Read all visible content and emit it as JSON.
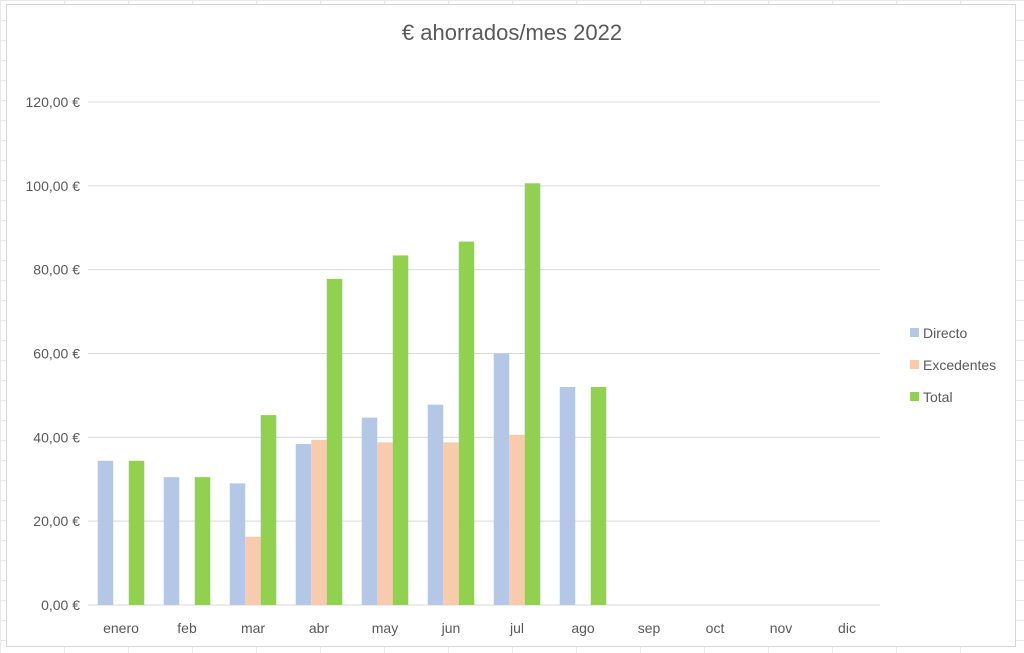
{
  "chart_data": {
    "type": "bar",
    "title": "€ ahorrados/mes 2022",
    "categories": [
      "enero",
      "feb",
      "mar",
      "abr",
      "may",
      "jun",
      "jul",
      "ago",
      "sep",
      "oct",
      "nov",
      "dic"
    ],
    "series": [
      {
        "name": "Directo",
        "color": "#b4c7e7",
        "values": [
          34.4,
          30.5,
          29.0,
          38.4,
          44.7,
          47.8,
          60.0,
          52.0,
          null,
          null,
          null,
          null
        ]
      },
      {
        "name": "Excedentes",
        "color": "#f8cbad",
        "values": [
          null,
          null,
          16.3,
          39.4,
          38.8,
          38.8,
          40.6,
          null,
          null,
          null,
          null,
          null
        ]
      },
      {
        "name": "Total",
        "color": "#92d050",
        "values": [
          34.4,
          30.5,
          45.3,
          77.8,
          83.4,
          86.7,
          100.6,
          52.0,
          null,
          null,
          null,
          null
        ]
      }
    ],
    "yticks": [
      "0,00 €",
      "20,00 €",
      "40,00 €",
      "60,00 €",
      "80,00 €",
      "100,00 €",
      "120,00 €"
    ],
    "ylim": [
      0,
      120
    ],
    "ytick_step": 20,
    "xlabel": "",
    "ylabel": "",
    "grid": true,
    "legend_position": "right"
  }
}
